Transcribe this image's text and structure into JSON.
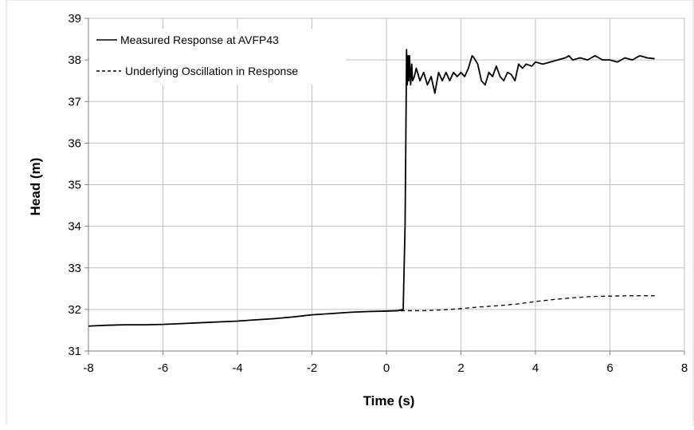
{
  "chart_data": {
    "type": "line",
    "xlabel": "Time (s)",
    "ylabel": "Head (m)",
    "xlim": [
      -8,
      8
    ],
    "ylim": [
      31,
      39
    ],
    "xticks": [
      -8,
      -6,
      -4,
      -2,
      0,
      2,
      4,
      6,
      8
    ],
    "yticks": [
      31,
      32,
      33,
      34,
      35,
      36,
      37,
      38,
      39
    ],
    "grid": true,
    "legend_position": "top-left",
    "series": [
      {
        "name": "Measured Response at AVFP43",
        "style": "solid",
        "color": "#000000",
        "x": [
          -8.0,
          -7.5,
          -7.0,
          -6.5,
          -6.0,
          -5.5,
          -5.0,
          -4.5,
          -4.0,
          -3.5,
          -3.0,
          -2.5,
          -2.0,
          -1.5,
          -1.0,
          -0.5,
          0.0,
          0.3,
          0.45,
          0.5,
          0.52,
          0.54,
          0.56,
          0.58,
          0.6,
          0.62,
          0.65,
          0.68,
          0.7,
          0.75,
          0.8,
          0.9,
          1.0,
          1.1,
          1.2,
          1.3,
          1.4,
          1.5,
          1.6,
          1.7,
          1.8,
          1.9,
          2.0,
          2.1,
          2.2,
          2.3,
          2.35,
          2.45,
          2.55,
          2.65,
          2.75,
          2.85,
          2.95,
          3.05,
          3.15,
          3.25,
          3.35,
          3.45,
          3.55,
          3.65,
          3.75,
          3.9,
          4.0,
          4.2,
          4.4,
          4.6,
          4.8,
          4.9,
          5.0,
          5.2,
          5.4,
          5.6,
          5.7,
          5.8,
          6.0,
          6.2,
          6.4,
          6.6,
          6.8,
          7.0,
          7.2
        ],
        "values": [
          31.6,
          31.62,
          31.63,
          31.63,
          31.64,
          31.66,
          31.68,
          31.7,
          31.72,
          31.75,
          31.78,
          31.82,
          31.87,
          31.9,
          31.93,
          31.95,
          31.96,
          31.97,
          32.0,
          34.0,
          36.0,
          38.25,
          37.4,
          38.1,
          37.5,
          38.1,
          37.4,
          37.9,
          37.5,
          37.6,
          37.8,
          37.5,
          37.7,
          37.4,
          37.6,
          37.2,
          37.7,
          37.5,
          37.7,
          37.5,
          37.7,
          37.6,
          37.7,
          37.6,
          37.8,
          38.1,
          38.05,
          37.9,
          37.5,
          37.4,
          37.7,
          37.6,
          37.85,
          37.6,
          37.5,
          37.7,
          37.65,
          37.5,
          37.9,
          37.8,
          37.9,
          37.85,
          37.95,
          37.9,
          37.95,
          38.0,
          38.05,
          38.1,
          38.0,
          38.05,
          38.0,
          38.1,
          38.05,
          38.0,
          38.0,
          37.95,
          38.05,
          38.0,
          38.1,
          38.05,
          38.03
        ]
      },
      {
        "name": "Underlying Oscillation in Response",
        "style": "dashed",
        "color": "#000000",
        "x": [
          0.0,
          0.5,
          1.0,
          1.5,
          2.0,
          2.5,
          3.0,
          3.5,
          4.0,
          4.5,
          5.0,
          5.5,
          6.0,
          6.5,
          7.2
        ],
        "values": [
          31.96,
          31.97,
          31.97,
          31.99,
          32.02,
          32.06,
          32.09,
          32.13,
          32.19,
          32.24,
          32.28,
          32.31,
          32.32,
          32.33,
          32.33
        ]
      }
    ]
  }
}
